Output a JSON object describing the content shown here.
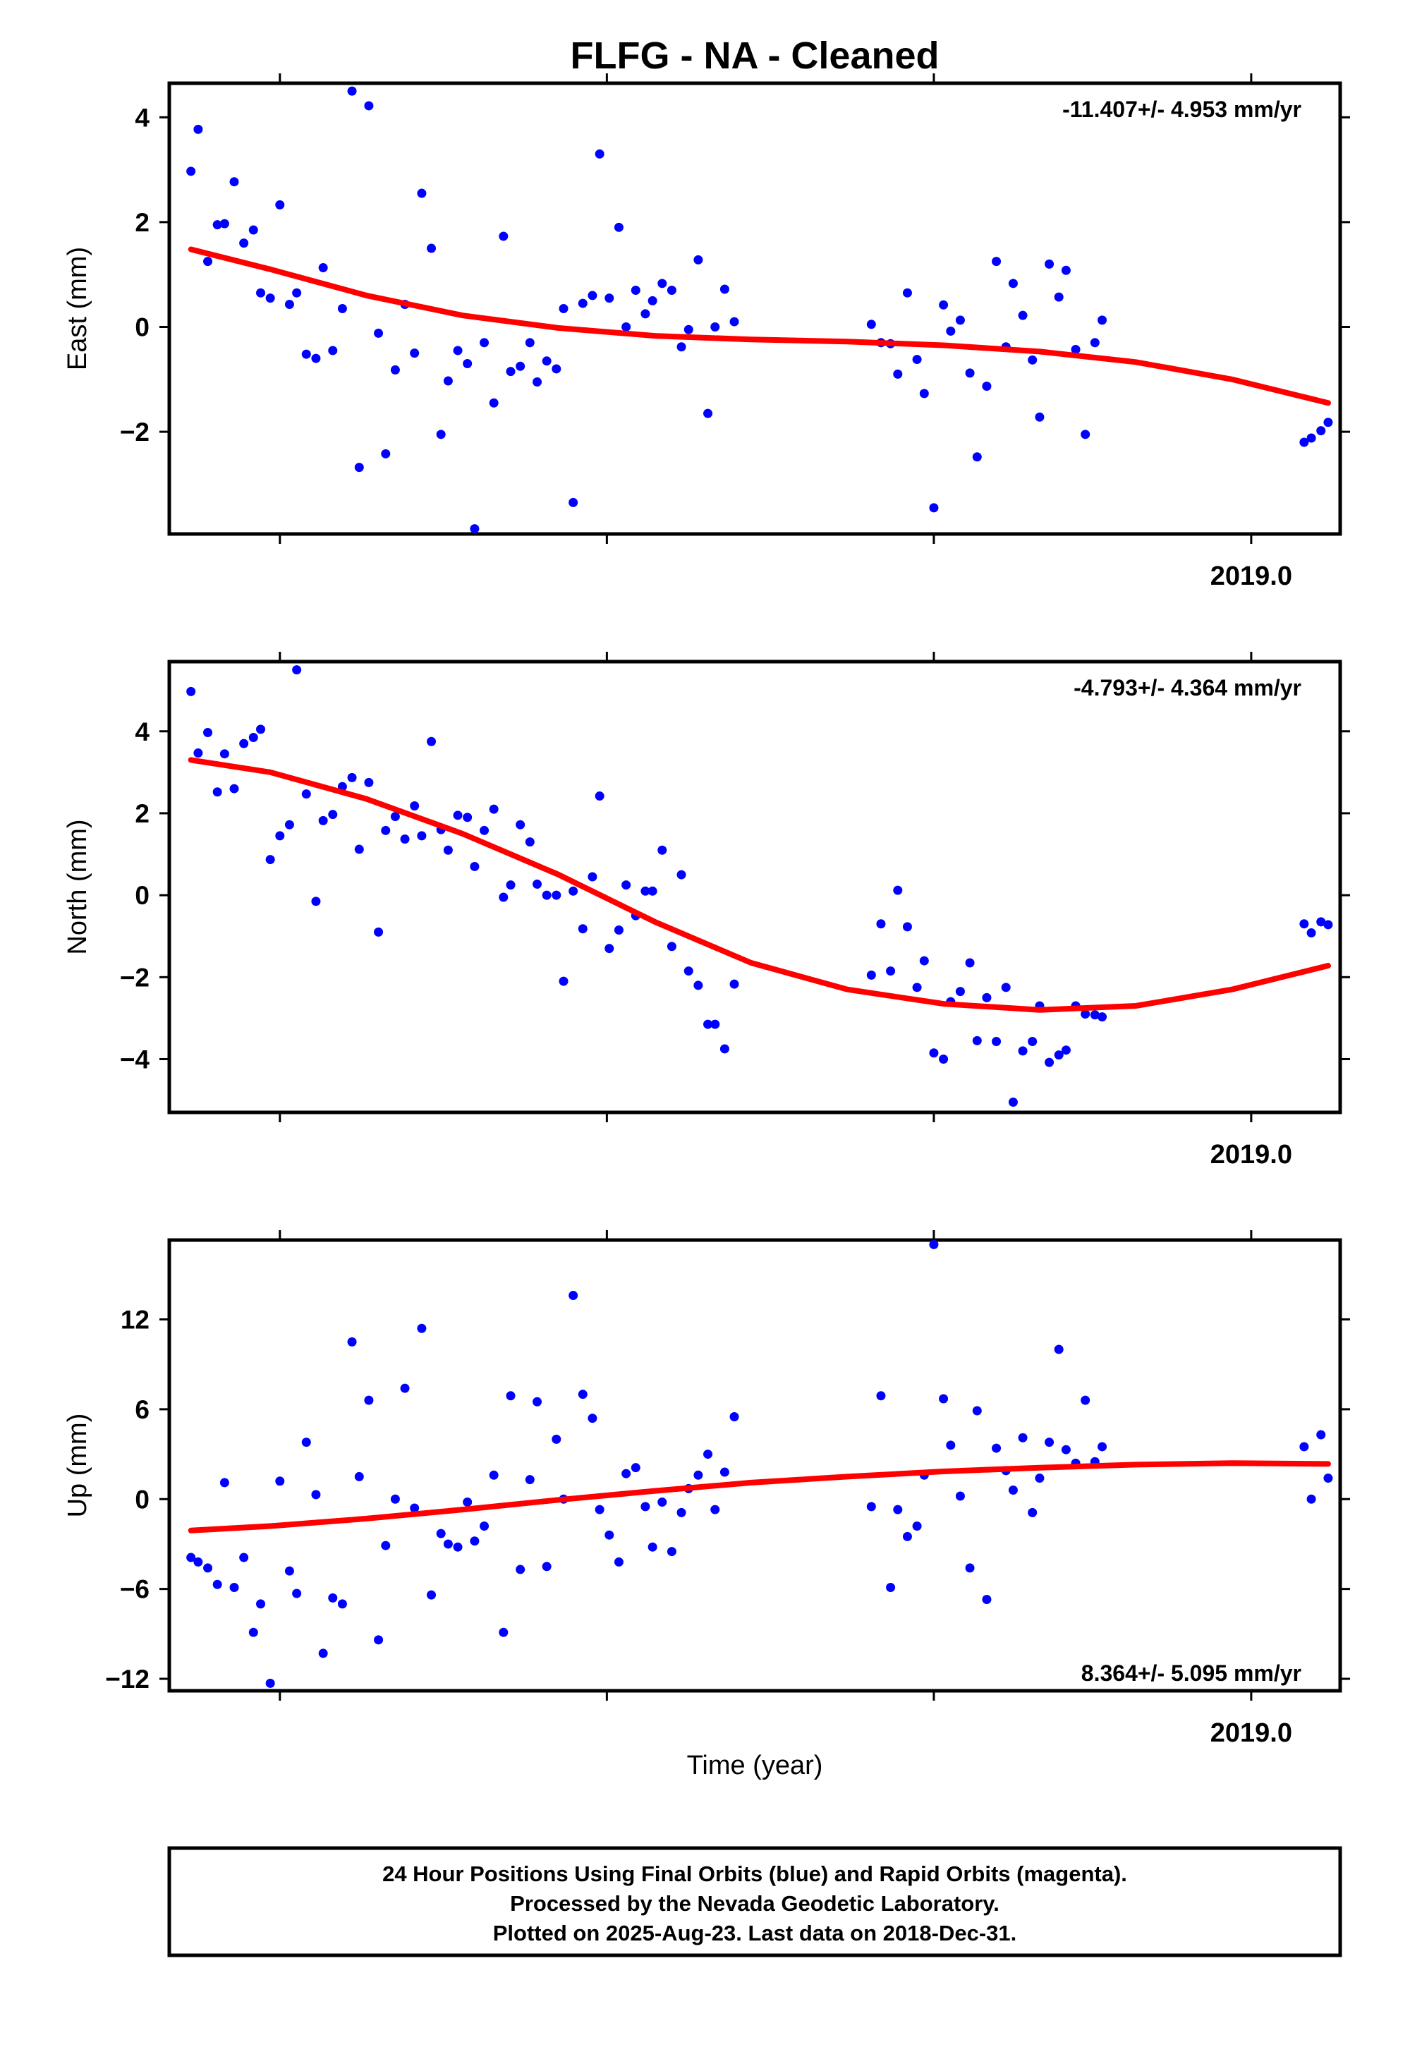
{
  "title": "FLFG  - NA - Cleaned",
  "xlabel": "Time (year)",
  "footer": {
    "lines": [
      "24 Hour Positions Using Final Orbits (blue) and Rapid Orbits (magenta).",
      "Processed by the Nevada Geodetic Laboratory.",
      "Plotted on 2025-Aug-23. Last data on 2018-Dec-31."
    ]
  },
  "colors": {
    "points": "#0000ff",
    "fit": "#ff0000",
    "axis": "#000000"
  },
  "chart_data": [
    {
      "type": "scatter",
      "ylabel": "East (mm)",
      "rate_label": "-11.407+/- 4.953 mm/yr",
      "rate_position": "top-right",
      "year_label": "2019.0",
      "xlim": [
        2014.18,
        2019.05
      ],
      "ylim": [
        -3.95,
        4.65
      ],
      "yticks": [
        -2,
        0,
        2,
        4
      ],
      "xticks": [
        2014.64,
        2016.0,
        2017.36,
        2018.68
      ],
      "points": [
        [
          2014.27,
          2.97
        ],
        [
          2014.3,
          3.77
        ],
        [
          2014.34,
          1.25
        ],
        [
          2014.38,
          1.95
        ],
        [
          2014.41,
          1.97
        ],
        [
          2014.45,
          2.77
        ],
        [
          2014.49,
          1.6
        ],
        [
          2014.53,
          1.85
        ],
        [
          2014.56,
          0.65
        ],
        [
          2014.6,
          0.55
        ],
        [
          2014.64,
          2.33
        ],
        [
          2014.68,
          0.43
        ],
        [
          2014.71,
          0.65
        ],
        [
          2014.75,
          -0.52
        ],
        [
          2014.79,
          -0.6
        ],
        [
          2014.82,
          1.13
        ],
        [
          2014.86,
          -0.45
        ],
        [
          2014.9,
          0.35
        ],
        [
          2014.94,
          4.5
        ],
        [
          2014.97,
          -2.68
        ],
        [
          2015.01,
          4.22
        ],
        [
          2015.05,
          -0.12
        ],
        [
          2015.08,
          -2.42
        ],
        [
          2015.12,
          -0.82
        ],
        [
          2015.16,
          0.43
        ],
        [
          2015.2,
          -0.5
        ],
        [
          2015.23,
          2.55
        ],
        [
          2015.27,
          1.5
        ],
        [
          2015.31,
          -2.05
        ],
        [
          2015.34,
          -1.03
        ],
        [
          2015.38,
          -0.45
        ],
        [
          2015.42,
          -0.7
        ],
        [
          2015.45,
          -3.85
        ],
        [
          2015.49,
          -0.3
        ],
        [
          2015.53,
          -1.45
        ],
        [
          2015.57,
          1.73
        ],
        [
          2015.6,
          -0.85
        ],
        [
          2015.64,
          -0.75
        ],
        [
          2015.68,
          -0.3
        ],
        [
          2015.71,
          -1.05
        ],
        [
          2015.75,
          -0.65
        ],
        [
          2015.79,
          -0.8
        ],
        [
          2015.82,
          0.35
        ],
        [
          2015.86,
          -3.35
        ],
        [
          2015.9,
          0.45
        ],
        [
          2015.94,
          0.6
        ],
        [
          2015.97,
          3.3
        ],
        [
          2016.01,
          0.55
        ],
        [
          2016.05,
          1.9
        ],
        [
          2016.08,
          0.0
        ],
        [
          2016.12,
          0.7
        ],
        [
          2016.16,
          0.25
        ],
        [
          2016.19,
          0.5
        ],
        [
          2016.23,
          0.83
        ],
        [
          2016.27,
          0.7
        ],
        [
          2016.31,
          -0.38
        ],
        [
          2016.34,
          -0.05
        ],
        [
          2016.38,
          1.28
        ],
        [
          2016.42,
          -1.65
        ],
        [
          2016.45,
          0.0
        ],
        [
          2016.49,
          0.72
        ],
        [
          2016.53,
          0.1
        ],
        [
          2017.1,
          0.05
        ],
        [
          2017.14,
          -0.3
        ],
        [
          2017.18,
          -0.32
        ],
        [
          2017.21,
          -0.9
        ],
        [
          2017.25,
          0.65
        ],
        [
          2017.29,
          -0.62
        ],
        [
          2017.32,
          -1.27
        ],
        [
          2017.36,
          -3.45
        ],
        [
          2017.4,
          0.42
        ],
        [
          2017.43,
          -0.08
        ],
        [
          2017.47,
          0.13
        ],
        [
          2017.51,
          -0.88
        ],
        [
          2017.54,
          -2.48
        ],
        [
          2017.58,
          -1.13
        ],
        [
          2017.62,
          1.25
        ],
        [
          2017.66,
          -0.38
        ],
        [
          2017.69,
          0.83
        ],
        [
          2017.73,
          0.22
        ],
        [
          2017.77,
          -0.63
        ],
        [
          2017.8,
          -1.72
        ],
        [
          2017.84,
          1.2
        ],
        [
          2017.88,
          0.57
        ],
        [
          2017.91,
          1.08
        ],
        [
          2017.95,
          -0.43
        ],
        [
          2017.99,
          -2.05
        ],
        [
          2018.03,
          -0.3
        ],
        [
          2018.06,
          0.13
        ],
        [
          2018.9,
          -2.2
        ],
        [
          2018.93,
          -2.12
        ],
        [
          2018.97,
          -1.98
        ],
        [
          2019.0,
          -1.82
        ]
      ],
      "fit": [
        [
          2014.27,
          1.48
        ],
        [
          2014.6,
          1.1
        ],
        [
          2015.0,
          0.6
        ],
        [
          2015.4,
          0.22
        ],
        [
          2015.8,
          -0.02
        ],
        [
          2016.2,
          -0.17
        ],
        [
          2016.6,
          -0.24
        ],
        [
          2017.0,
          -0.28
        ],
        [
          2017.4,
          -0.35
        ],
        [
          2017.8,
          -0.47
        ],
        [
          2018.2,
          -0.67
        ],
        [
          2018.6,
          -1.0
        ],
        [
          2019.0,
          -1.45
        ]
      ]
    },
    {
      "type": "scatter",
      "ylabel": "North (mm)",
      "rate_label": "-4.793+/- 4.364 mm/yr",
      "rate_position": "top-right",
      "year_label": "2019.0",
      "xlim": [
        2014.18,
        2019.05
      ],
      "ylim": [
        -5.3,
        5.7
      ],
      "yticks": [
        -4,
        -2,
        0,
        2,
        4
      ],
      "xticks": [
        2014.64,
        2016.0,
        2017.36,
        2018.68
      ],
      "points": [
        [
          2014.27,
          4.97
        ],
        [
          2014.3,
          3.47
        ],
        [
          2014.34,
          3.97
        ],
        [
          2014.38,
          2.52
        ],
        [
          2014.41,
          3.45
        ],
        [
          2014.45,
          2.6
        ],
        [
          2014.49,
          3.7
        ],
        [
          2014.53,
          3.85
        ],
        [
          2014.56,
          4.05
        ],
        [
          2014.6,
          0.87
        ],
        [
          2014.64,
          1.45
        ],
        [
          2014.68,
          1.72
        ],
        [
          2014.71,
          5.5
        ],
        [
          2014.75,
          2.47
        ],
        [
          2014.79,
          -0.15
        ],
        [
          2014.82,
          1.82
        ],
        [
          2014.86,
          1.97
        ],
        [
          2014.9,
          2.65
        ],
        [
          2014.94,
          2.87
        ],
        [
          2014.97,
          1.12
        ],
        [
          2015.01,
          2.75
        ],
        [
          2015.05,
          -0.9
        ],
        [
          2015.08,
          1.58
        ],
        [
          2015.12,
          1.92
        ],
        [
          2015.16,
          1.37
        ],
        [
          2015.2,
          2.18
        ],
        [
          2015.23,
          1.45
        ],
        [
          2015.27,
          3.75
        ],
        [
          2015.31,
          1.6
        ],
        [
          2015.34,
          1.1
        ],
        [
          2015.38,
          1.95
        ],
        [
          2015.42,
          1.9
        ],
        [
          2015.45,
          0.7
        ],
        [
          2015.49,
          1.58
        ],
        [
          2015.53,
          2.1
        ],
        [
          2015.57,
          -0.05
        ],
        [
          2015.6,
          0.25
        ],
        [
          2015.64,
          1.72
        ],
        [
          2015.68,
          1.3
        ],
        [
          2015.71,
          0.27
        ],
        [
          2015.75,
          0.0
        ],
        [
          2015.79,
          0.0
        ],
        [
          2015.82,
          -2.1
        ],
        [
          2015.86,
          0.1
        ],
        [
          2015.9,
          -0.82
        ],
        [
          2015.94,
          0.45
        ],
        [
          2015.97,
          2.42
        ],
        [
          2016.01,
          -1.3
        ],
        [
          2016.05,
          -0.85
        ],
        [
          2016.08,
          0.25
        ],
        [
          2016.12,
          -0.5
        ],
        [
          2016.16,
          0.1
        ],
        [
          2016.19,
          0.1
        ],
        [
          2016.23,
          1.1
        ],
        [
          2016.27,
          -1.25
        ],
        [
          2016.31,
          0.5
        ],
        [
          2016.34,
          -1.85
        ],
        [
          2016.38,
          -2.2
        ],
        [
          2016.42,
          -3.15
        ],
        [
          2016.45,
          -3.15
        ],
        [
          2016.49,
          -3.75
        ],
        [
          2016.53,
          -2.17
        ],
        [
          2017.1,
          -1.95
        ],
        [
          2017.14,
          -0.7
        ],
        [
          2017.18,
          -1.85
        ],
        [
          2017.21,
          0.12
        ],
        [
          2017.25,
          -0.77
        ],
        [
          2017.29,
          -2.25
        ],
        [
          2017.32,
          -1.6
        ],
        [
          2017.36,
          -3.85
        ],
        [
          2017.4,
          -4.0
        ],
        [
          2017.43,
          -2.6
        ],
        [
          2017.47,
          -2.35
        ],
        [
          2017.51,
          -1.65
        ],
        [
          2017.54,
          -3.55
        ],
        [
          2017.58,
          -2.5
        ],
        [
          2017.62,
          -3.57
        ],
        [
          2017.66,
          -2.25
        ],
        [
          2017.69,
          -5.05
        ],
        [
          2017.73,
          -3.8
        ],
        [
          2017.77,
          -3.57
        ],
        [
          2017.8,
          -2.7
        ],
        [
          2017.84,
          -4.08
        ],
        [
          2017.88,
          -3.9
        ],
        [
          2017.91,
          -3.78
        ],
        [
          2017.95,
          -2.7
        ],
        [
          2017.99,
          -2.9
        ],
        [
          2018.03,
          -2.92
        ],
        [
          2018.06,
          -2.97
        ],
        [
          2018.9,
          -0.7
        ],
        [
          2018.93,
          -0.92
        ],
        [
          2018.97,
          -0.65
        ],
        [
          2019.0,
          -0.72
        ]
      ],
      "fit": [
        [
          2014.27,
          3.3
        ],
        [
          2014.6,
          3.0
        ],
        [
          2015.0,
          2.35
        ],
        [
          2015.4,
          1.5
        ],
        [
          2015.8,
          0.5
        ],
        [
          2016.2,
          -0.65
        ],
        [
          2016.6,
          -1.65
        ],
        [
          2017.0,
          -2.3
        ],
        [
          2017.4,
          -2.65
        ],
        [
          2017.8,
          -2.8
        ],
        [
          2018.2,
          -2.7
        ],
        [
          2018.6,
          -2.3
        ],
        [
          2019.0,
          -1.72
        ]
      ]
    },
    {
      "type": "scatter",
      "ylabel": "Up (mm)",
      "rate_label": "8.364+/- 5.095 mm/yr",
      "rate_position": "bottom-right",
      "year_label": "2019.0",
      "xlim": [
        2014.18,
        2019.05
      ],
      "ylim": [
        -12.8,
        17.3
      ],
      "yticks": [
        -12,
        -6,
        0,
        6,
        12
      ],
      "xticks": [
        2014.64,
        2016.0,
        2017.36,
        2018.68
      ],
      "points": [
        [
          2014.27,
          -3.9
        ],
        [
          2014.3,
          -4.2
        ],
        [
          2014.34,
          -4.6
        ],
        [
          2014.38,
          -5.7
        ],
        [
          2014.41,
          1.1
        ],
        [
          2014.45,
          -5.9
        ],
        [
          2014.49,
          -3.9
        ],
        [
          2014.53,
          -8.9
        ],
        [
          2014.56,
          -7.0
        ],
        [
          2014.6,
          -12.3
        ],
        [
          2014.64,
          1.2
        ],
        [
          2014.68,
          -4.8
        ],
        [
          2014.71,
          -6.3
        ],
        [
          2014.75,
          3.8
        ],
        [
          2014.79,
          0.3
        ],
        [
          2014.82,
          -10.3
        ],
        [
          2014.86,
          -6.6
        ],
        [
          2014.9,
          -7.0
        ],
        [
          2014.94,
          10.5
        ],
        [
          2014.97,
          1.5
        ],
        [
          2015.01,
          6.6
        ],
        [
          2015.05,
          -9.4
        ],
        [
          2015.08,
          -3.1
        ],
        [
          2015.12,
          0.0
        ],
        [
          2015.16,
          7.4
        ],
        [
          2015.2,
          -0.6
        ],
        [
          2015.23,
          11.4
        ],
        [
          2015.27,
          -6.4
        ],
        [
          2015.31,
          -2.3
        ],
        [
          2015.34,
          -3.0
        ],
        [
          2015.38,
          -3.2
        ],
        [
          2015.42,
          -0.2
        ],
        [
          2015.45,
          -2.8
        ],
        [
          2015.49,
          -1.8
        ],
        [
          2015.53,
          1.6
        ],
        [
          2015.57,
          -8.9
        ],
        [
          2015.6,
          6.9
        ],
        [
          2015.64,
          -4.7
        ],
        [
          2015.68,
          1.3
        ],
        [
          2015.71,
          6.5
        ],
        [
          2015.75,
          -4.5
        ],
        [
          2015.79,
          4.0
        ],
        [
          2015.82,
          0.0
        ],
        [
          2015.86,
          13.6
        ],
        [
          2015.9,
          7.0
        ],
        [
          2015.94,
          5.4
        ],
        [
          2015.97,
          -0.7
        ],
        [
          2016.01,
          -2.4
        ],
        [
          2016.05,
          -4.2
        ],
        [
          2016.08,
          1.7
        ],
        [
          2016.12,
          2.1
        ],
        [
          2016.16,
          -0.5
        ],
        [
          2016.19,
          -3.2
        ],
        [
          2016.23,
          -0.2
        ],
        [
          2016.27,
          -3.5
        ],
        [
          2016.31,
          -0.9
        ],
        [
          2016.34,
          0.7
        ],
        [
          2016.38,
          1.6
        ],
        [
          2016.42,
          3.0
        ],
        [
          2016.45,
          -0.7
        ],
        [
          2016.49,
          1.8
        ],
        [
          2016.53,
          5.5
        ],
        [
          2017.1,
          -0.5
        ],
        [
          2017.14,
          6.9
        ],
        [
          2017.18,
          -5.9
        ],
        [
          2017.21,
          -0.7
        ],
        [
          2017.25,
          -2.5
        ],
        [
          2017.29,
          -1.8
        ],
        [
          2017.32,
          1.6
        ],
        [
          2017.36,
          17.0
        ],
        [
          2017.4,
          6.7
        ],
        [
          2017.43,
          3.6
        ],
        [
          2017.47,
          0.2
        ],
        [
          2017.51,
          -4.6
        ],
        [
          2017.54,
          5.9
        ],
        [
          2017.58,
          -6.7
        ],
        [
          2017.62,
          3.4
        ],
        [
          2017.66,
          1.9
        ],
        [
          2017.69,
          0.6
        ],
        [
          2017.73,
          4.1
        ],
        [
          2017.77,
          -0.9
        ],
        [
          2017.8,
          1.4
        ],
        [
          2017.84,
          3.8
        ],
        [
          2017.88,
          10.0
        ],
        [
          2017.91,
          3.3
        ],
        [
          2017.95,
          2.4
        ],
        [
          2017.99,
          6.6
        ],
        [
          2018.03,
          2.5
        ],
        [
          2018.06,
          3.5
        ],
        [
          2018.9,
          3.5
        ],
        [
          2018.93,
          0.0
        ],
        [
          2018.97,
          4.3
        ],
        [
          2019.0,
          1.4
        ]
      ],
      "fit": [
        [
          2014.27,
          -2.1
        ],
        [
          2014.6,
          -1.8
        ],
        [
          2015.0,
          -1.3
        ],
        [
          2015.4,
          -0.7
        ],
        [
          2015.8,
          -0.05
        ],
        [
          2016.2,
          0.55
        ],
        [
          2016.6,
          1.1
        ],
        [
          2017.0,
          1.5
        ],
        [
          2017.4,
          1.85
        ],
        [
          2017.8,
          2.1
        ],
        [
          2018.2,
          2.3
        ],
        [
          2018.6,
          2.4
        ],
        [
          2019.0,
          2.35
        ]
      ]
    }
  ]
}
